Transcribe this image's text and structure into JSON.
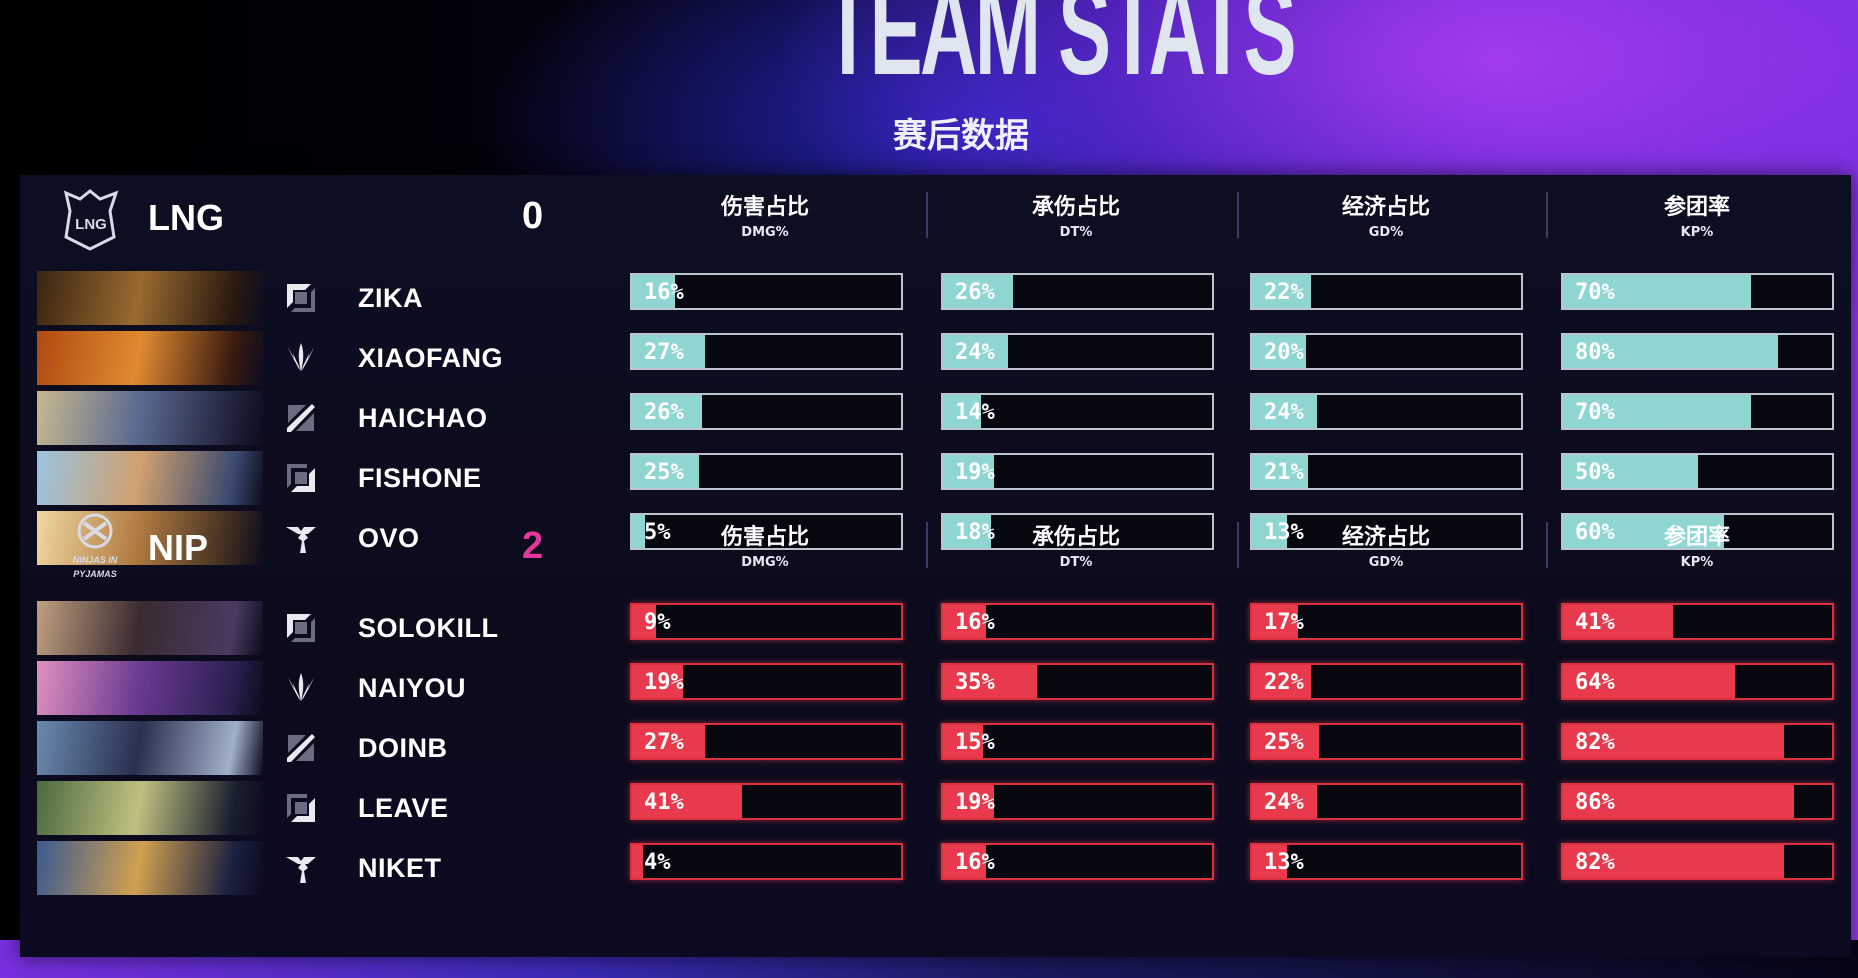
{
  "header": {
    "title": "TEAM STATS",
    "subtitle": "赛后数据"
  },
  "columns": [
    {
      "zh": "伤害占比",
      "en": "DMG%"
    },
    {
      "zh": "承伤占比",
      "en": "DT%"
    },
    {
      "zh": "经济占比",
      "en": "GD%"
    },
    {
      "zh": "参团率",
      "en": "KP%"
    }
  ],
  "colors": {
    "lng_bar": "#8fd6d3",
    "lng_border": "#b9c4cc",
    "nip_bar": "#e83a4c",
    "nip_border": "#d8323f",
    "nip_score": "#e2379c"
  },
  "teams": [
    {
      "name": "LNG",
      "score": "0",
      "logo": "LNG",
      "players": [
        {
          "name": "ZIKA",
          "role": "top",
          "stats": [
            "16%",
            "26%",
            "22%",
            "70%"
          ]
        },
        {
          "name": "XIAOFANG",
          "role": "jungle",
          "stats": [
            "27%",
            "24%",
            "20%",
            "80%"
          ]
        },
        {
          "name": "HAICHAO",
          "role": "mid",
          "stats": [
            "26%",
            "14%",
            "24%",
            "70%"
          ]
        },
        {
          "name": "FISHONE",
          "role": "bot",
          "stats": [
            "25%",
            "19%",
            "21%",
            "50%"
          ]
        },
        {
          "name": "OVO",
          "role": "support",
          "stats": [
            "5%",
            "18%",
            "13%",
            "60%"
          ]
        }
      ]
    },
    {
      "name": "NIP",
      "score": "2",
      "logo": "NINJAS IN PYJAMAS",
      "players": [
        {
          "name": "SOLOKILL",
          "role": "top",
          "stats": [
            "9%",
            "16%",
            "17%",
            "41%"
          ]
        },
        {
          "name": "NAIYOU",
          "role": "jungle",
          "stats": [
            "19%",
            "35%",
            "22%",
            "64%"
          ]
        },
        {
          "name": "DOINB",
          "role": "mid",
          "stats": [
            "27%",
            "15%",
            "25%",
            "82%"
          ]
        },
        {
          "name": "LEAVE",
          "role": "bot",
          "stats": [
            "41%",
            "19%",
            "24%",
            "86%"
          ]
        },
        {
          "name": "NIKET",
          "role": "support",
          "stats": [
            "4%",
            "16%",
            "13%",
            "82%"
          ]
        }
      ]
    }
  ]
}
